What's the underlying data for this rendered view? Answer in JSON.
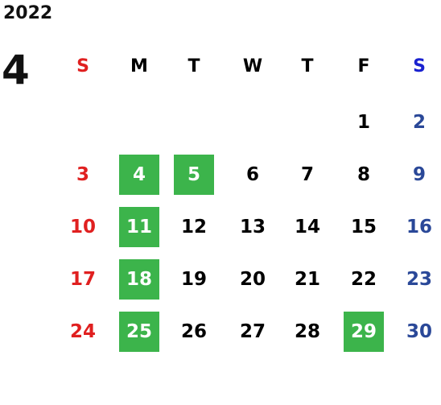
{
  "year": "2022",
  "month": "4",
  "weekdays": [
    "S",
    "M",
    "T",
    "W",
    "T",
    "F",
    "S"
  ],
  "weeks": [
    [
      null,
      null,
      null,
      null,
      null,
      {
        "day": 1
      },
      {
        "day": 2
      }
    ],
    [
      {
        "day": 3
      },
      {
        "day": 4,
        "highlight": true
      },
      {
        "day": 5,
        "highlight": true
      },
      {
        "day": 6
      },
      {
        "day": 7
      },
      {
        "day": 8
      },
      {
        "day": 9
      }
    ],
    [
      {
        "day": 10
      },
      {
        "day": 11,
        "highlight": true
      },
      {
        "day": 12
      },
      {
        "day": 13
      },
      {
        "day": 14
      },
      {
        "day": 15
      },
      {
        "day": 16
      }
    ],
    [
      {
        "day": 17
      },
      {
        "day": 18,
        "highlight": true
      },
      {
        "day": 19
      },
      {
        "day": 20
      },
      {
        "day": 21
      },
      {
        "day": 22
      },
      {
        "day": 23
      }
    ],
    [
      {
        "day": 24
      },
      {
        "day": 25,
        "highlight": true
      },
      {
        "day": 26
      },
      {
        "day": 27
      },
      {
        "day": 28
      },
      {
        "day": 29,
        "highlight": true
      },
      {
        "day": 30
      }
    ]
  ]
}
